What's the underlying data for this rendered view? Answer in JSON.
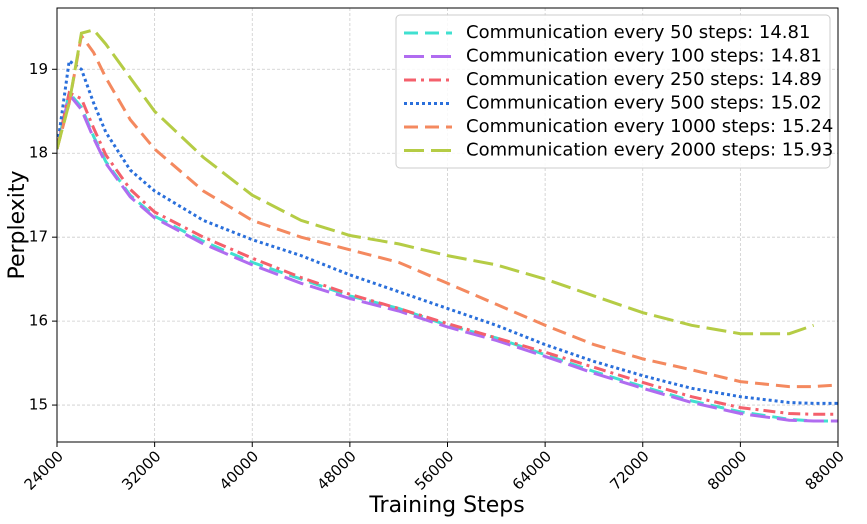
{
  "chart_data": {
    "type": "line",
    "xlabel": "Training Steps",
    "ylabel": "Perplexity",
    "x": [
      24000,
      25000,
      26000,
      27000,
      28000,
      30000,
      32000,
      36000,
      40000,
      44000,
      48000,
      52000,
      56000,
      60000,
      64000,
      68000,
      72000,
      76000,
      80000,
      84000,
      86000,
      88000
    ],
    "xlim": [
      24000,
      88000
    ],
    "xticks": [
      24000,
      32000,
      40000,
      48000,
      56000,
      64000,
      72000,
      80000,
      88000
    ],
    "ylim": [
      14.56,
      19.73
    ],
    "yticks": [
      15,
      16,
      17,
      18,
      19
    ],
    "grid": true,
    "legend": "upper right",
    "series": [
      {
        "name": "Communication every 50 steps: 14.81",
        "color": "#40e0d0",
        "linestyle": "dashed",
        "values": [
          18.05,
          18.72,
          18.55,
          18.2,
          17.9,
          17.5,
          17.25,
          16.95,
          16.7,
          16.5,
          16.3,
          16.15,
          15.95,
          15.8,
          15.6,
          15.4,
          15.22,
          15.05,
          14.92,
          14.83,
          14.81,
          14.81
        ]
      },
      {
        "name": "Communication every 100 steps: 14.81",
        "color": "#b06cf0",
        "linestyle": "longdash",
        "values": [
          18.05,
          18.7,
          18.52,
          18.18,
          17.88,
          17.48,
          17.23,
          16.92,
          16.67,
          16.45,
          16.27,
          16.12,
          15.93,
          15.77,
          15.58,
          15.38,
          15.2,
          15.03,
          14.9,
          14.82,
          14.81,
          14.81
        ]
      },
      {
        "name": "Communication every 250 steps: 14.89",
        "color": "#f4606c",
        "linestyle": "dashdot",
        "values": [
          18.05,
          18.72,
          18.65,
          18.3,
          17.98,
          17.57,
          17.3,
          17.0,
          16.75,
          16.52,
          16.32,
          16.15,
          15.97,
          15.8,
          15.63,
          15.45,
          15.27,
          15.1,
          14.97,
          14.9,
          14.89,
          14.89
        ]
      },
      {
        "name": "Communication every 500 steps: 15.02",
        "color": "#2a6fdb",
        "linestyle": "dotted",
        "values": [
          18.05,
          19.1,
          19.0,
          18.6,
          18.25,
          17.8,
          17.55,
          17.2,
          16.97,
          16.78,
          16.55,
          16.35,
          16.15,
          15.95,
          15.72,
          15.52,
          15.35,
          15.2,
          15.1,
          15.03,
          15.02,
          15.02
        ]
      },
      {
        "name": "Communication every 1000 steps: 15.24",
        "color": "#f4895f",
        "linestyle": "dashed",
        "values": [
          18.05,
          18.6,
          19.4,
          19.2,
          18.9,
          18.4,
          18.05,
          17.55,
          17.2,
          17.0,
          16.85,
          16.7,
          16.45,
          16.2,
          15.95,
          15.72,
          15.55,
          15.42,
          15.28,
          15.22,
          15.22,
          15.24
        ]
      },
      {
        "name": "Communication every 2000 steps: 15.93",
        "color": "#b5cc45",
        "linestyle": "longdash",
        "values": [
          18.05,
          18.6,
          19.43,
          19.47,
          19.3,
          18.9,
          18.5,
          17.95,
          17.5,
          17.2,
          17.02,
          16.92,
          16.78,
          16.67,
          16.5,
          16.3,
          16.1,
          15.95,
          15.85,
          15.85,
          15.95,
          null
        ]
      }
    ]
  }
}
